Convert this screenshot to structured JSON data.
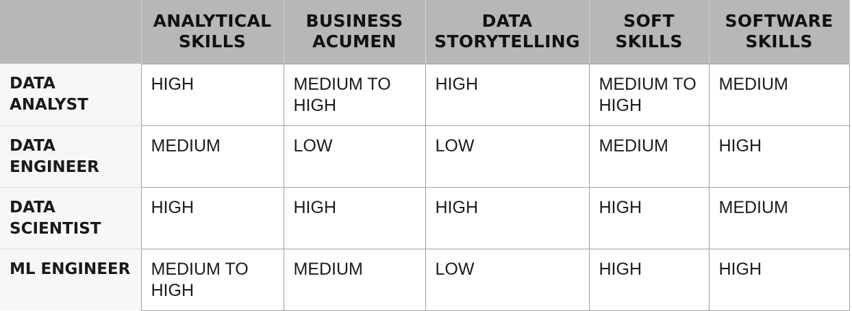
{
  "table": {
    "corner": "",
    "columns": [
      "ANALYTICAL SKILLS",
      "BUSINESS ACUMEN",
      "DATA STORYTELLING",
      "SOFT SKILLS",
      "SOFTWARE SKILLS"
    ],
    "rows": [
      {
        "label": "DATA ANALYST",
        "cells": [
          "HIGH",
          "MEDIUM TO HIGH",
          "HIGH",
          "MEDIUM TO HIGH",
          "MEDIUM"
        ]
      },
      {
        "label": "DATA ENGINEER",
        "cells": [
          "MEDIUM",
          "LOW",
          "LOW",
          "MEDIUM",
          "HIGH"
        ]
      },
      {
        "label": "DATA SCIENTIST",
        "cells": [
          "HIGH",
          "HIGH",
          "HIGH",
          "HIGH",
          "MEDIUM"
        ]
      },
      {
        "label": "ML ENGINEER",
        "cells": [
          "MEDIUM TO HIGH",
          "MEDIUM",
          "LOW",
          "HIGH",
          "HIGH"
        ]
      }
    ]
  },
  "colors": {
    "header_bg": "#b7b7b7",
    "row_label_bg": "#f7f7f7",
    "grid": "#9e9e9e",
    "text": "#1a1a1a"
  }
}
